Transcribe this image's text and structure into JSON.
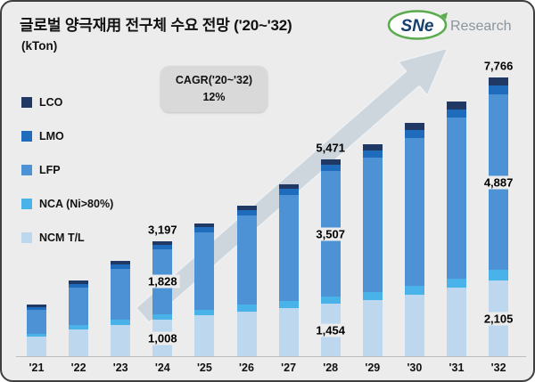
{
  "header": {
    "title": "글로벌 양극재用 전구체 수요 전망 ('20~'32)",
    "unit": "(kTon)"
  },
  "logo": {
    "brand": "SNe",
    "suffix": "Research"
  },
  "callout": {
    "line1": "CAGR('20~'32)",
    "line2": "12%"
  },
  "colors": {
    "background": "#ececec",
    "arrow": "#c9d2da",
    "callout_bg": "#d9d9d9",
    "logo_green": "#5aab4d",
    "logo_navy": "#15406e"
  },
  "chart_data": {
    "type": "bar",
    "stacked": true,
    "title": "글로벌 양극재用 전구체 수요 전망 ('20~'32)",
    "ylabel": "kTon",
    "xlabel": "",
    "ylim": [
      0,
      8000
    ],
    "grid": false,
    "legend_position": "left",
    "categories": [
      "'21",
      "'22",
      "'23",
      "'24",
      "'25",
      "'26",
      "'27",
      "'28",
      "'29",
      "'30",
      "'31",
      "'32"
    ],
    "series": [
      {
        "name": "NCM T/L",
        "color": "#bdd7ee",
        "values": [
          550,
          750,
          880,
          1008,
          1130,
          1250,
          1350,
          1454,
          1560,
          1720,
          1900,
          2105
        ]
      },
      {
        "name": "NCA (Ni>80%)",
        "color": "#49b2e8",
        "values": [
          80,
          110,
          130,
          150,
          165,
          180,
          190,
          200,
          220,
          250,
          270,
          300
        ]
      },
      {
        "name": "LFP",
        "color": "#4e92d6",
        "values": [
          650,
          1050,
          1430,
          1828,
          2160,
          2490,
          2950,
          3507,
          3760,
          4120,
          4480,
          4887
        ]
      },
      {
        "name": "LMO",
        "color": "#1e6cbb",
        "values": [
          90,
          110,
          120,
          120,
          135,
          150,
          170,
          170,
          190,
          210,
          230,
          250
        ]
      },
      {
        "name": "LCO",
        "color": "#1f3864",
        "values": [
          80,
          80,
          90,
          91,
          110,
          130,
          140,
          140,
          170,
          200,
          220,
          224
        ]
      }
    ],
    "totals": [
      1450,
      2100,
      2650,
      3197,
      3700,
      4200,
      4800,
      5471,
      5900,
      6500,
      7100,
      7766
    ],
    "annotations": [
      {
        "category": "'24",
        "kind": "total",
        "text": "3,197"
      },
      {
        "category": "'24",
        "kind": "segment",
        "series": "LFP",
        "text": "1,828"
      },
      {
        "category": "'24",
        "kind": "segment",
        "series": "NCM T/L",
        "text": "1,008"
      },
      {
        "category": "'28",
        "kind": "total",
        "text": "5,471"
      },
      {
        "category": "'28",
        "kind": "segment",
        "series": "LFP",
        "text": "3,507"
      },
      {
        "category": "'28",
        "kind": "segment",
        "series": "NCM T/L",
        "text": "1,454"
      },
      {
        "category": "'32",
        "kind": "total",
        "text": "7,766"
      },
      {
        "category": "'32",
        "kind": "segment",
        "series": "LFP",
        "text": "4,887"
      },
      {
        "category": "'32",
        "kind": "segment",
        "series": "NCM T/L",
        "text": "2,105"
      }
    ]
  }
}
